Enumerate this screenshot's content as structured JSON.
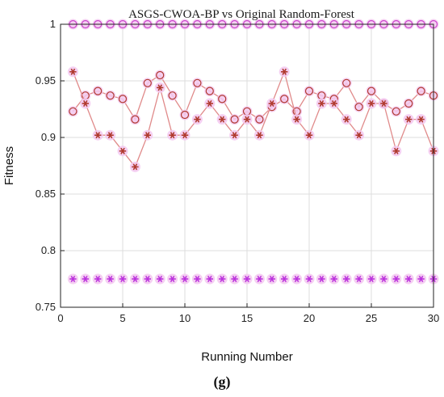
{
  "chart_data": {
    "type": "line",
    "title": "ASGS-CWOA-BP vs Original Random-Forest",
    "xlabel": "Running Number",
    "ylabel": "Fitness",
    "caption": "(g)",
    "xlim": [
      0,
      30
    ],
    "ylim": [
      0.75,
      1.0
    ],
    "xticks": [
      0,
      5,
      10,
      15,
      20,
      25,
      30
    ],
    "yticks": [
      0.75,
      0.8,
      0.85,
      0.9,
      0.95,
      1
    ],
    "ytick_labels": [
      "0.75",
      "0.8",
      "0.85",
      "0.9",
      "0.95",
      "1"
    ],
    "grid": true,
    "x": [
      1,
      2,
      3,
      4,
      5,
      6,
      7,
      8,
      9,
      10,
      11,
      12,
      13,
      14,
      15,
      16,
      17,
      18,
      19,
      20,
      21,
      22,
      23,
      24,
      25,
      26,
      27,
      28,
      29,
      30
    ],
    "series": [
      {
        "marker": "circle",
        "color": "#cc44cc",
        "line": false,
        "values": [
          1,
          1,
          1,
          1,
          1,
          1,
          1,
          1,
          1,
          1,
          1,
          1,
          1,
          1,
          1,
          1,
          1,
          1,
          1,
          1,
          1,
          1,
          1,
          1,
          1,
          1,
          1,
          1,
          1,
          1
        ]
      },
      {
        "marker": "star",
        "color": "#bb33dd",
        "line": false,
        "values": [
          0.775,
          0.775,
          0.775,
          0.775,
          0.775,
          0.775,
          0.775,
          0.775,
          0.775,
          0.775,
          0.775,
          0.775,
          0.775,
          0.775,
          0.775,
          0.775,
          0.775,
          0.775,
          0.775,
          0.775,
          0.775,
          0.775,
          0.775,
          0.775,
          0.775,
          0.775,
          0.775,
          0.775,
          0.775,
          0.775
        ]
      },
      {
        "marker": "circle",
        "color": "#b03a2e",
        "line": true,
        "values": [
          0.923,
          0.937,
          0.941,
          0.937,
          0.934,
          0.916,
          0.948,
          0.955,
          0.937,
          0.92,
          0.948,
          0.941,
          0.934,
          0.916,
          0.923,
          0.916,
          0.927,
          0.934,
          0.923,
          0.941,
          0.937,
          0.934,
          0.948,
          0.927,
          0.941,
          0.93,
          0.923,
          0.93,
          0.941,
          0.937
        ]
      },
      {
        "marker": "star",
        "color": "#b03a2e",
        "line": true,
        "values": [
          0.958,
          0.93,
          0.902,
          0.902,
          0.888,
          0.874,
          0.902,
          0.944,
          0.902,
          0.902,
          0.916,
          0.93,
          0.916,
          0.902,
          0.916,
          0.902,
          0.93,
          0.958,
          0.916,
          0.902,
          0.93,
          0.93,
          0.916,
          0.902,
          0.93,
          0.93,
          0.888,
          0.916,
          0.916,
          0.888
        ]
      }
    ]
  }
}
